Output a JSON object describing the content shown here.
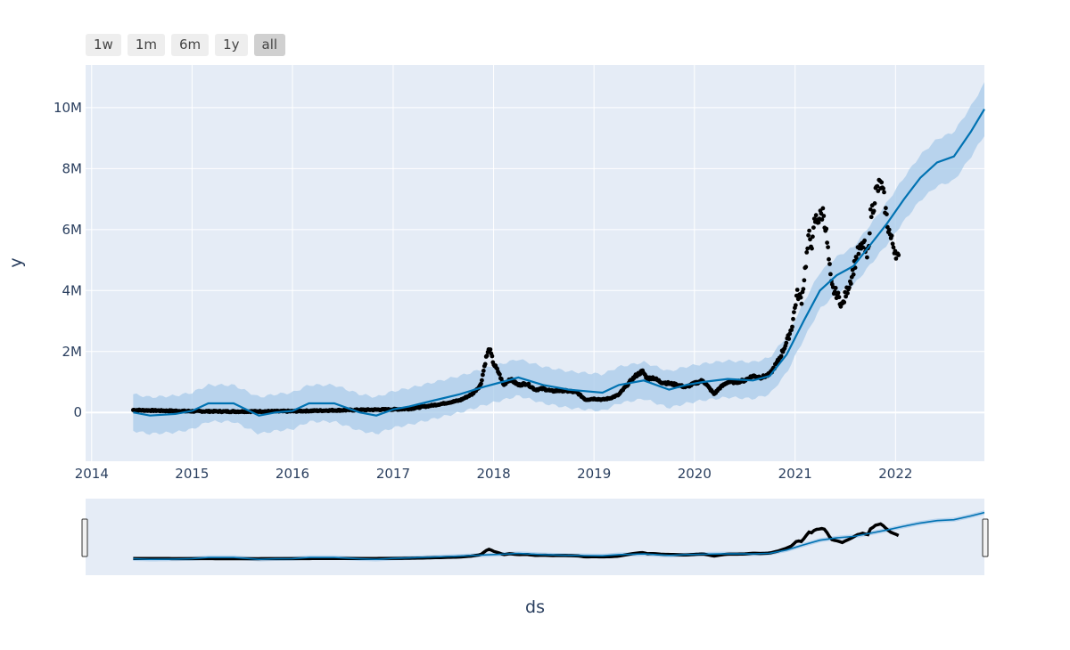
{
  "range_buttons": [
    {
      "label": "1w",
      "active": false
    },
    {
      "label": "1m",
      "active": false
    },
    {
      "label": "6m",
      "active": false
    },
    {
      "label": "1y",
      "active": false
    },
    {
      "label": "all",
      "active": true
    }
  ],
  "colors": {
    "plot_bg": "#e5ecf6",
    "grid": "#ffffff",
    "trend": "#0072b2",
    "band": "#a8cbea",
    "points": "#000000"
  },
  "chart_data": {
    "type": "line",
    "title": "",
    "xlabel": "ds",
    "ylabel": "y",
    "x_range": [
      "2013-12-10",
      "2022-11-20"
    ],
    "y_range": [
      -1600000,
      11400000
    ],
    "x_ticks": [
      "2014",
      "2015",
      "2016",
      "2017",
      "2018",
      "2019",
      "2020",
      "2021",
      "2022"
    ],
    "y_ticks": [
      {
        "value": 0,
        "label": "0"
      },
      {
        "value": 2000000,
        "label": "2M"
      },
      {
        "value": 4000000,
        "label": "4M"
      },
      {
        "value": 6000000,
        "label": "6M"
      },
      {
        "value": 8000000,
        "label": "8M"
      },
      {
        "value": 10000000,
        "label": "10M"
      }
    ],
    "grid": true,
    "rangeslider": true,
    "series": [
      {
        "kind": "observed-points",
        "x": [
          "2014-06-01",
          "2014-09-01",
          "2015-01-01",
          "2015-06-01",
          "2016-01-01",
          "2016-06-01",
          "2017-01-01",
          "2017-03-01",
          "2017-05-01",
          "2017-07-01",
          "2017-09-01",
          "2017-10-15",
          "2017-11-15",
          "2017-12-05",
          "2017-12-17",
          "2018-01-01",
          "2018-01-20",
          "2018-02-06",
          "2018-03-01",
          "2018-04-01",
          "2018-05-01",
          "2018-06-01",
          "2018-07-01",
          "2018-08-01",
          "2018-09-01",
          "2018-10-01",
          "2018-11-01",
          "2018-12-01",
          "2019-01-01",
          "2019-02-01",
          "2019-03-01",
          "2019-04-01",
          "2019-05-01",
          "2019-06-01",
          "2019-06-26",
          "2019-07-15",
          "2019-08-01",
          "2019-09-01",
          "2019-10-01",
          "2019-11-01",
          "2019-12-01",
          "2020-01-01",
          "2020-02-01",
          "2020-03-13",
          "2020-04-01",
          "2020-05-01",
          "2020-06-01",
          "2020-07-01",
          "2020-08-01",
          "2020-09-01",
          "2020-10-01",
          "2020-11-01",
          "2020-12-01",
          "2020-12-20",
          "2021-01-08",
          "2021-01-25",
          "2021-02-10",
          "2021-02-21",
          "2021-03-05",
          "2021-03-13",
          "2021-04-01",
          "2021-04-14",
          "2021-04-25",
          "2021-05-12",
          "2021-05-20",
          "2021-06-01",
          "2021-06-22",
          "2021-07-01",
          "2021-07-20",
          "2021-08-01",
          "2021-08-15",
          "2021-09-01",
          "2021-09-06",
          "2021-09-21",
          "2021-10-01",
          "2021-10-15",
          "2021-10-20",
          "2021-11-08",
          "2021-11-20",
          "2021-12-01",
          "2021-12-15",
          "2022-01-01",
          "2022-01-12"
        ],
        "y": [
          80000,
          60000,
          40000,
          30000,
          40000,
          70000,
          100000,
          120000,
          200000,
          290000,
          400000,
          600000,
          900000,
          1800000,
          2100000,
          1600000,
          1300000,
          900000,
          1100000,
          900000,
          950000,
          750000,
          780000,
          700000,
          720000,
          700000,
          650000,
          420000,
          450000,
          420000,
          470000,
          580000,
          900000,
          1200000,
          1350000,
          1100000,
          1150000,
          1000000,
          950000,
          900000,
          830000,
          950000,
          1050000,
          600000,
          800000,
          1000000,
          1000000,
          1050000,
          1200000,
          1150000,
          1250000,
          1700000,
          2300000,
          2800000,
          3900000,
          3700000,
          5000000,
          5800000,
          5500000,
          6300000,
          6400000,
          6600000,
          5800000,
          4200000,
          4000000,
          3900000,
          3500000,
          3800000,
          4300000,
          4700000,
          5200000,
          5400000,
          5600000,
          5000000,
          6400000,
          6900000,
          7200000,
          7500000,
          7000000,
          6300000,
          5700000,
          5300000,
          5000000
        ]
      },
      {
        "kind": "trend",
        "x": [
          "2014-06-01",
          "2014-08-01",
          "2014-11-01",
          "2015-01-01",
          "2015-03-01",
          "2015-06-01",
          "2015-09-01",
          "2015-11-01",
          "2016-01-01",
          "2016-03-01",
          "2016-06-01",
          "2016-09-01",
          "2016-11-01",
          "2017-01-01",
          "2017-03-01",
          "2017-06-01",
          "2017-09-01",
          "2017-12-01",
          "2018-02-01",
          "2018-04-01",
          "2018-07-01",
          "2018-10-01",
          "2018-12-01",
          "2019-02-01",
          "2019-04-01",
          "2019-07-01",
          "2019-10-01",
          "2019-12-01",
          "2020-02-01",
          "2020-05-01",
          "2020-08-01",
          "2020-10-01",
          "2020-12-01",
          "2021-02-01",
          "2021-04-01",
          "2021-06-01",
          "2021-08-01",
          "2021-10-01",
          "2021-12-01",
          "2022-02-01",
          "2022-04-01",
          "2022-06-01",
          "2022-08-01",
          "2022-10-01",
          "2022-11-20"
        ],
        "y": [
          0,
          -100000,
          -50000,
          50000,
          300000,
          300000,
          -100000,
          0,
          50000,
          300000,
          300000,
          0,
          -100000,
          100000,
          200000,
          400000,
          600000,
          850000,
          1000000,
          1150000,
          900000,
          750000,
          700000,
          650000,
          900000,
          1050000,
          750000,
          900000,
          1000000,
          1100000,
          1050000,
          1200000,
          1900000,
          3000000,
          4000000,
          4500000,
          4800000,
          5500000,
          6200000,
          7000000,
          7700000,
          8200000,
          8400000,
          9200000,
          9950000
        ]
      }
    ]
  }
}
